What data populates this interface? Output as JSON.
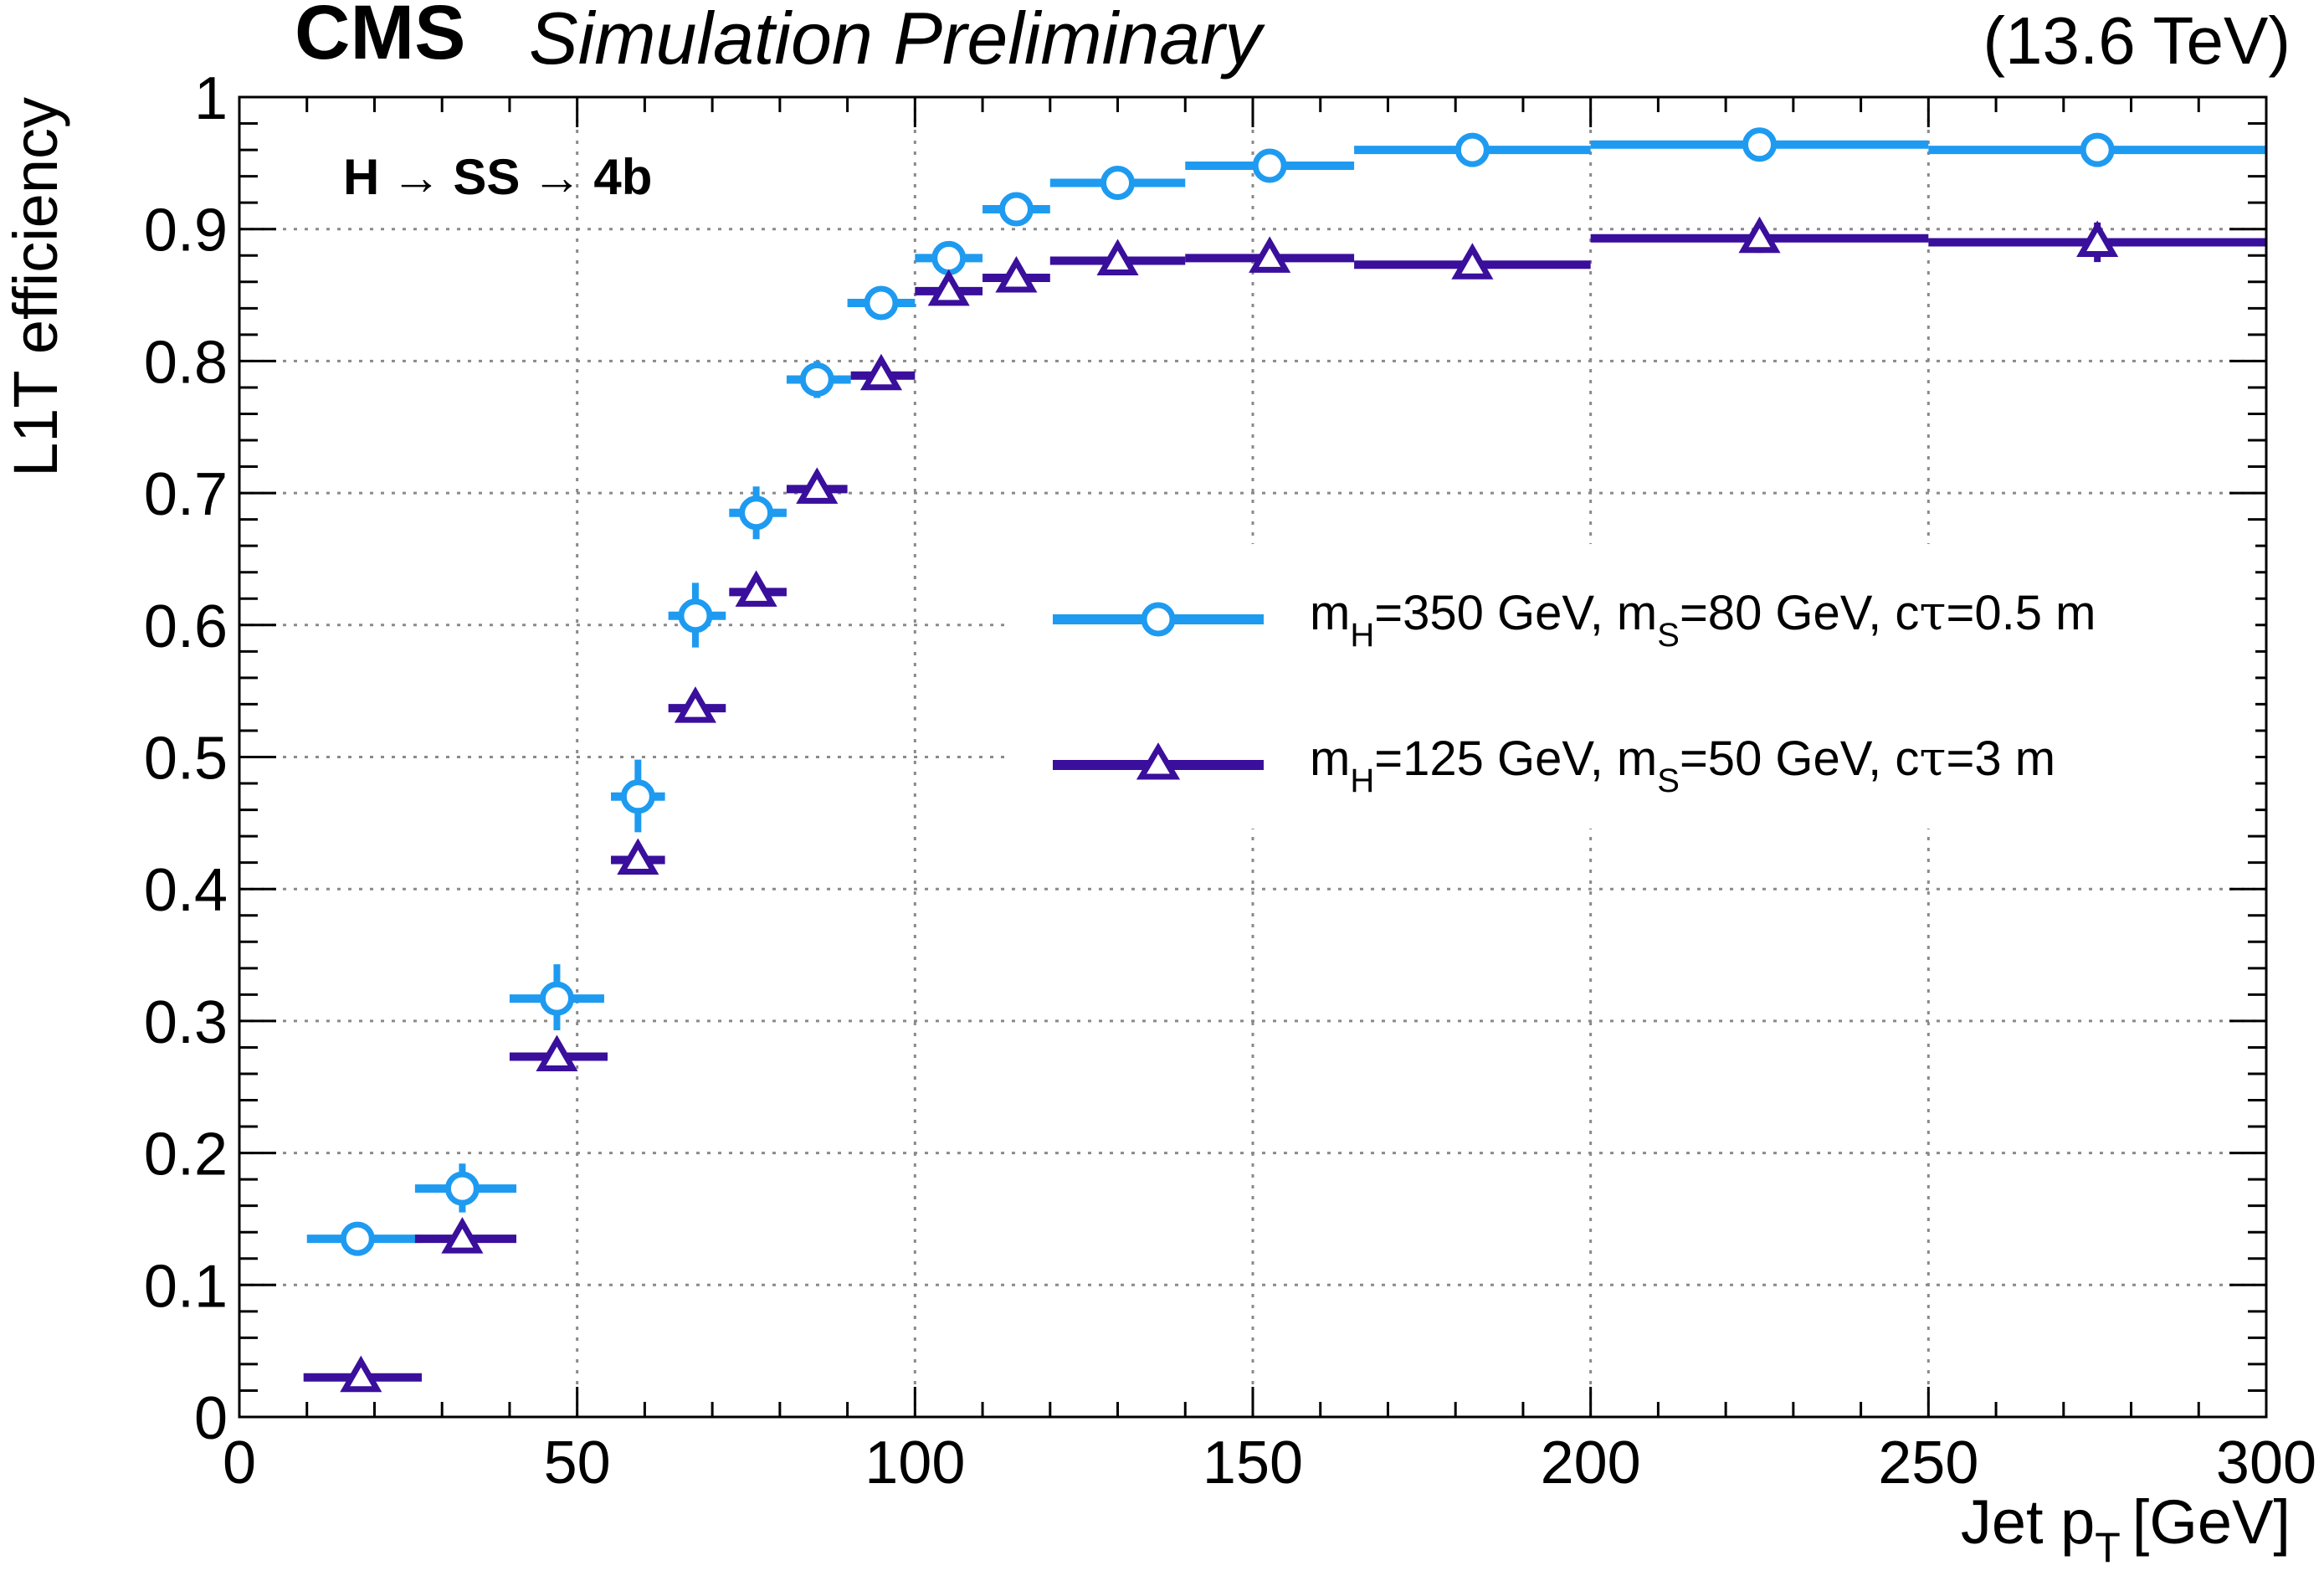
{
  "header": {
    "experiment": "CMS",
    "status": "Simulation Preliminary",
    "energy": "(13.6 TeV)"
  },
  "annotation": {
    "parts": [
      "H",
      "→",
      "SS",
      "→",
      "4b"
    ]
  },
  "chart_data": {
    "type": "scatter",
    "xlabel_main": "Jet p",
    "xlabel_sub": "T",
    "xlabel_unit": "[GeV]",
    "ylabel": "L1T efficiency",
    "xlim": [
      0,
      300
    ],
    "ylim": [
      0,
      1
    ],
    "x_ticks": [
      0,
      50,
      100,
      150,
      200,
      250,
      300
    ],
    "x_tick_labels": [
      "0",
      "50",
      "100",
      "150",
      "200",
      "250",
      "300"
    ],
    "y_ticks": [
      0,
      0.1,
      0.2,
      0.3,
      0.4,
      0.5,
      0.6,
      0.7,
      0.8,
      0.9,
      1
    ],
    "y_tick_labels": [
      "0",
      "0.1",
      "0.2",
      "0.3",
      "0.4",
      "0.5",
      "0.6",
      "0.7",
      "0.8",
      "0.9",
      "1"
    ],
    "grid": true,
    "legend_position": "right-middle",
    "series": [
      {
        "label": {
          "mh_pre": "m",
          "mh_sub": "H",
          "mh_val": "=350 GeV, m",
          "ms_sub": "S",
          "ms_val": "=80 GeV, c",
          "tau": "τ",
          "ct_val": "=0.5 m"
        },
        "color": "#1e9bf0",
        "marker": "open-circle",
        "points": [
          {
            "x": 17.5,
            "xlo": 10,
            "xhi": 27,
            "y": 0.135,
            "ylo": 0.124,
            "yhi": 0.146
          },
          {
            "x": 33,
            "xlo": 26,
            "xhi": 41,
            "y": 0.173,
            "ylo": 0.155,
            "yhi": 0.192
          },
          {
            "x": 47,
            "xlo": 40,
            "xhi": 54,
            "y": 0.317,
            "ylo": 0.293,
            "yhi": 0.343
          },
          {
            "x": 59,
            "xlo": 55,
            "xhi": 63,
            "y": 0.47,
            "ylo": 0.443,
            "yhi": 0.498
          },
          {
            "x": 67.5,
            "xlo": 63.5,
            "xhi": 72,
            "y": 0.607,
            "ylo": 0.583,
            "yhi": 0.632
          },
          {
            "x": 76.5,
            "xlo": 72.5,
            "xhi": 81,
            "y": 0.685,
            "ylo": 0.665,
            "yhi": 0.705
          },
          {
            "x": 85.5,
            "xlo": 81,
            "xhi": 90.5,
            "y": 0.786,
            "ylo": 0.772,
            "yhi": 0.8
          },
          {
            "x": 95,
            "xlo": 90,
            "xhi": 100,
            "y": 0.844,
            "ylo": 0.833,
            "yhi": 0.855
          },
          {
            "x": 105,
            "xlo": 100,
            "xhi": 110,
            "y": 0.878,
            "ylo": 0.868,
            "yhi": 0.888
          },
          {
            "x": 115,
            "xlo": 110,
            "xhi": 120,
            "y": 0.915,
            "ylo": 0.908,
            "yhi": 0.923
          },
          {
            "x": 130,
            "xlo": 120,
            "xhi": 140,
            "y": 0.935,
            "ylo": 0.929,
            "yhi": 0.941
          },
          {
            "x": 152.5,
            "xlo": 140,
            "xhi": 165,
            "y": 0.948,
            "ylo": 0.943,
            "yhi": 0.953
          },
          {
            "x": 182.5,
            "xlo": 165,
            "xhi": 200,
            "y": 0.96,
            "ylo": 0.956,
            "yhi": 0.964
          },
          {
            "x": 225,
            "xlo": 200,
            "xhi": 250,
            "y": 0.964,
            "ylo": 0.959,
            "yhi": 0.969
          },
          {
            "x": 275,
            "xlo": 250,
            "xhi": 300,
            "y": 0.96,
            "ylo": 0.955,
            "yhi": 0.965
          }
        ]
      },
      {
        "label": {
          "mh_pre": "m",
          "mh_sub": "H",
          "mh_val": "=125 GeV, m",
          "ms_sub": "S",
          "ms_val": "=50 GeV, c",
          "tau": "τ",
          "ct_val": "=3 m"
        },
        "color": "#3a0f9c",
        "marker": "open-triangle",
        "points": [
          {
            "x": 18,
            "xlo": 9.5,
            "xhi": 27,
            "y": 0.03,
            "ylo": 0.027,
            "yhi": 0.033
          },
          {
            "x": 33,
            "xlo": 26,
            "xhi": 41,
            "y": 0.135,
            "ylo": 0.13,
            "yhi": 0.14
          },
          {
            "x": 47,
            "xlo": 40,
            "xhi": 54.5,
            "y": 0.273,
            "ylo": 0.266,
            "yhi": 0.28
          },
          {
            "x": 59,
            "xlo": 55,
            "xhi": 63,
            "y": 0.422,
            "ylo": 0.414,
            "yhi": 0.43
          },
          {
            "x": 67.5,
            "xlo": 63.5,
            "xhi": 72,
            "y": 0.537,
            "ylo": 0.529,
            "yhi": 0.545
          },
          {
            "x": 76.5,
            "xlo": 72.5,
            "xhi": 81,
            "y": 0.625,
            "ylo": 0.618,
            "yhi": 0.632
          },
          {
            "x": 85.5,
            "xlo": 81,
            "xhi": 90,
            "y": 0.703,
            "ylo": 0.696,
            "yhi": 0.71
          },
          {
            "x": 95,
            "xlo": 90.5,
            "xhi": 100,
            "y": 0.789,
            "ylo": 0.783,
            "yhi": 0.795
          },
          {
            "x": 105,
            "xlo": 100,
            "xhi": 110,
            "y": 0.853,
            "ylo": 0.847,
            "yhi": 0.859
          },
          {
            "x": 115,
            "xlo": 110,
            "xhi": 120,
            "y": 0.863,
            "ylo": 0.857,
            "yhi": 0.869
          },
          {
            "x": 130,
            "xlo": 120,
            "xhi": 140,
            "y": 0.876,
            "ylo": 0.87,
            "yhi": 0.882
          },
          {
            "x": 152.5,
            "xlo": 140,
            "xhi": 165,
            "y": 0.878,
            "ylo": 0.872,
            "yhi": 0.884
          },
          {
            "x": 182.5,
            "xlo": 165,
            "xhi": 200,
            "y": 0.873,
            "ylo": 0.866,
            "yhi": 0.88
          },
          {
            "x": 225,
            "xlo": 200,
            "xhi": 250,
            "y": 0.893,
            "ylo": 0.882,
            "yhi": 0.904
          },
          {
            "x": 275,
            "xlo": 250,
            "xhi": 300,
            "y": 0.89,
            "ylo": 0.875,
            "yhi": 0.905
          }
        ]
      }
    ]
  }
}
